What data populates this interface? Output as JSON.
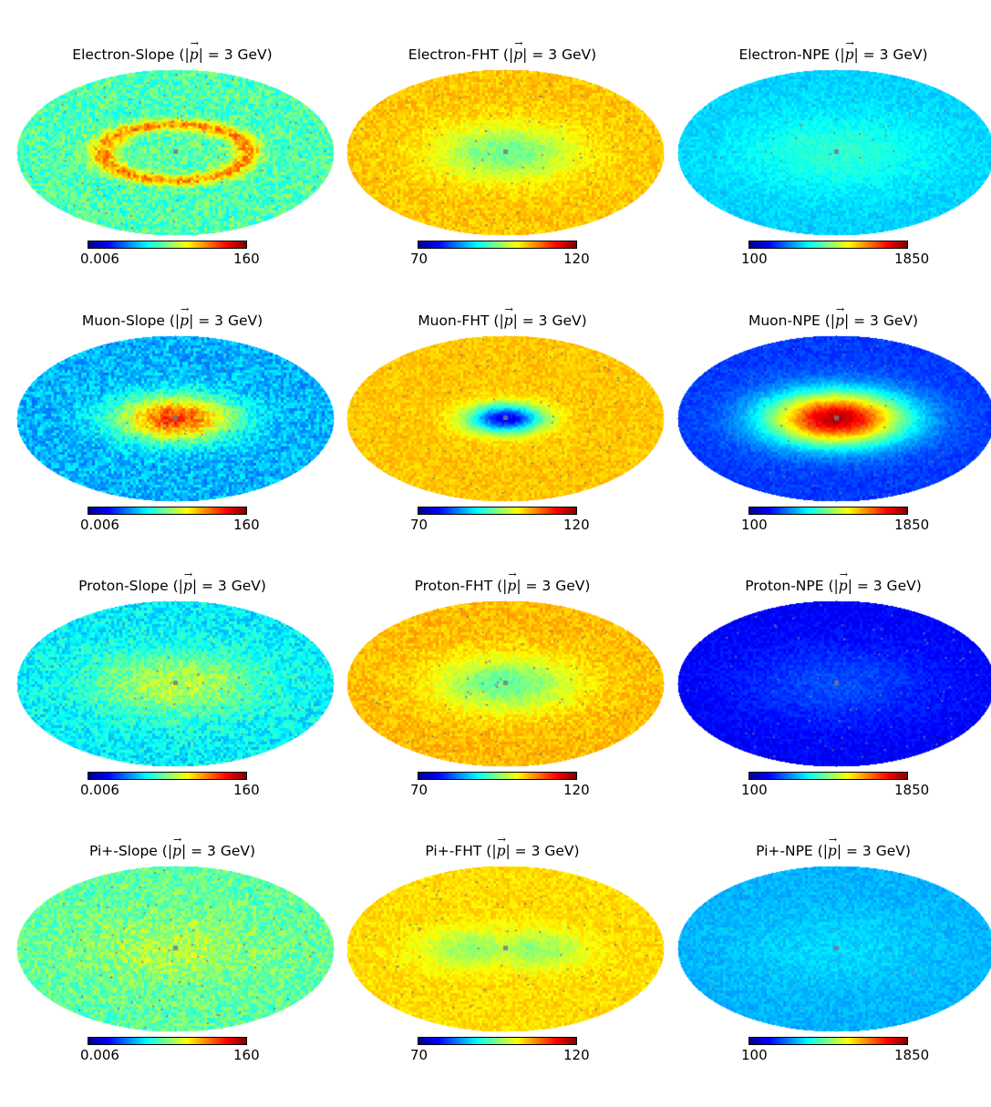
{
  "chart_data": [
    {
      "type": "heatmap",
      "projection": "mollweide",
      "particle": "Electron",
      "quantity": "Slope",
      "title_prefix": "Electron-Slope (",
      "title_suffix": "= 3 GeV)",
      "colorbar": {
        "min": "0.006",
        "max": "160",
        "colormap": "jet"
      },
      "base_level": 0.45,
      "center_level": 0.47,
      "ring": {
        "radius": 0.34,
        "width": 0.07,
        "level": 0.78
      },
      "center_radius": 0.2,
      "noise": 0.14
    },
    {
      "type": "heatmap",
      "projection": "mollweide",
      "particle": "Electron",
      "quantity": "FHT",
      "title_prefix": "Electron-FHT (",
      "title_suffix": "= 3 GeV)",
      "colorbar": {
        "min": "70",
        "max": "120",
        "colormap": "jet"
      },
      "base_level": 0.68,
      "center_level": 0.48,
      "center_radius": 0.32,
      "noise": 0.07
    },
    {
      "type": "heatmap",
      "projection": "mollweide",
      "particle": "Electron",
      "quantity": "NPE",
      "title_prefix": "Electron-NPE (",
      "title_suffix": "= 3 GeV)",
      "colorbar": {
        "min": "100",
        "max": "1850",
        "colormap": "jet"
      },
      "base_level": 0.33,
      "center_level": 0.42,
      "center_radius": 0.45,
      "noise": 0.05
    },
    {
      "type": "heatmap",
      "projection": "mollweide",
      "particle": "Muon",
      "quantity": "Slope",
      "title_prefix": "Muon-Slope (",
      "title_suffix": "= 3 GeV)",
      "colorbar": {
        "min": "0.006",
        "max": "160",
        "colormap": "jet"
      },
      "base_level": 0.3,
      "center_level": 0.82,
      "center_radius": 0.27,
      "noise": 0.12
    },
    {
      "type": "heatmap",
      "projection": "mollweide",
      "particle": "Muon",
      "quantity": "FHT",
      "title_prefix": "Muon-FHT (",
      "title_suffix": "= 3 GeV)",
      "colorbar": {
        "min": "70",
        "max": "120",
        "colormap": "jet"
      },
      "base_level": 0.68,
      "center_level": 0.1,
      "center_radius": 0.17,
      "noise": 0.06
    },
    {
      "type": "heatmap",
      "projection": "mollweide",
      "particle": "Muon",
      "quantity": "NPE",
      "title_prefix": "Muon-NPE (",
      "title_suffix": "= 3 GeV)",
      "colorbar": {
        "min": "100",
        "max": "1850",
        "colormap": "jet"
      },
      "base_level": 0.18,
      "center_level": 0.95,
      "center_radius": 0.32,
      "noise": 0.05
    },
    {
      "type": "heatmap",
      "projection": "mollweide",
      "particle": "Proton",
      "quantity": "Slope",
      "title_prefix": "Proton-Slope (",
      "title_suffix": "= 3 GeV)",
      "colorbar": {
        "min": "0.006",
        "max": "160",
        "colormap": "jet"
      },
      "base_level": 0.36,
      "center_level": 0.56,
      "center_radius": 0.4,
      "noise": 0.12
    },
    {
      "type": "heatmap",
      "projection": "mollweide",
      "particle": "Proton",
      "quantity": "FHT",
      "title_prefix": "Proton-FHT (",
      "title_suffix": "= 3 GeV)",
      "colorbar": {
        "min": "70",
        "max": "120",
        "colormap": "jet"
      },
      "base_level": 0.69,
      "center_level": 0.47,
      "center_radius": 0.32,
      "noise": 0.07
    },
    {
      "type": "heatmap",
      "projection": "mollweide",
      "particle": "Proton",
      "quantity": "NPE",
      "title_prefix": "Proton-NPE (",
      "title_suffix": "= 3 GeV)",
      "colorbar": {
        "min": "100",
        "max": "1850",
        "colormap": "jet"
      },
      "base_level": 0.12,
      "center_level": 0.2,
      "center_radius": 0.45,
      "noise": 0.05
    },
    {
      "type": "heatmap",
      "projection": "mollweide",
      "particle": "Pi+",
      "quantity": "Slope",
      "title_prefix": "Pi+-Slope (",
      "title_suffix": "= 3 GeV)",
      "colorbar": {
        "min": "0.006",
        "max": "160",
        "colormap": "jet"
      },
      "base_level": 0.47,
      "center_level": 0.55,
      "center_radius": 0.4,
      "noise": 0.13
    },
    {
      "type": "heatmap",
      "projection": "mollweide",
      "particle": "Pi+",
      "quantity": "FHT",
      "title_prefix": "Pi+-FHT (",
      "title_suffix": "= 3 GeV)",
      "colorbar": {
        "min": "70",
        "max": "120",
        "colormap": "jet"
      },
      "base_level": 0.66,
      "center_level": 0.52,
      "center_radius": 0.24,
      "double_center": true,
      "noise": 0.06
    },
    {
      "type": "heatmap",
      "projection": "mollweide",
      "particle": "Pi+",
      "quantity": "NPE",
      "title_prefix": "Pi+-NPE (",
      "title_suffix": "= 3 GeV)",
      "colorbar": {
        "min": "100",
        "max": "1850",
        "colormap": "jet"
      },
      "base_level": 0.3,
      "center_level": 0.34,
      "center_radius": 0.45,
      "noise": 0.05
    }
  ]
}
